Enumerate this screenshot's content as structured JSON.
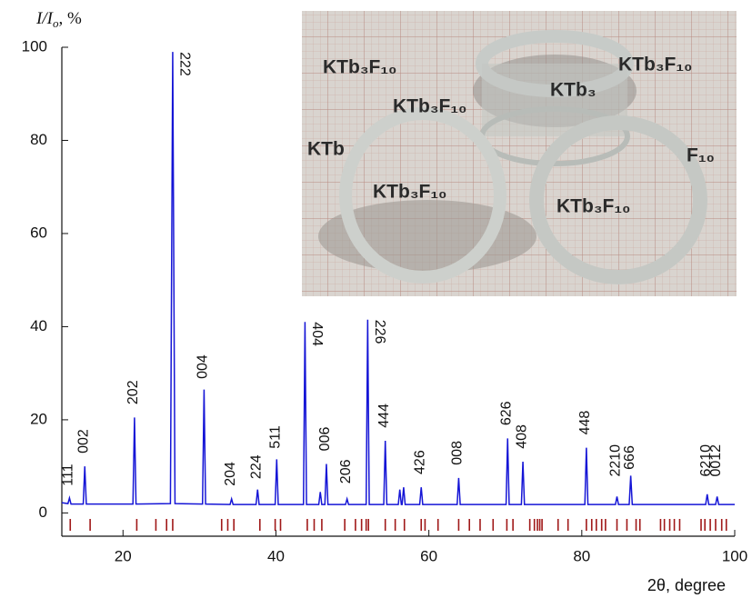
{
  "chart_data": {
    "type": "line",
    "y_label": {
      "main": "I/I",
      "sub": "o",
      "unit": ", %"
    },
    "x_label": "2θ, degree",
    "xlim": [
      12,
      100
    ],
    "xticks": [
      20,
      40,
      60,
      80,
      100
    ],
    "ylim": [
      -5,
      100
    ],
    "yticks": [
      0,
      20,
      40,
      60,
      80,
      100
    ],
    "series": [
      {
        "color": "#1515d6",
        "x": [
          12,
          12.8,
          13.0,
          13.2,
          14.8,
          15.0,
          15.2,
          21.3,
          21.5,
          21.7,
          26.2,
          26.5,
          26.8,
          30.4,
          30.6,
          30.8,
          34.0,
          34.2,
          34.4,
          37.4,
          37.6,
          37.8,
          39.9,
          40.1,
          40.3,
          43.6,
          43.8,
          44.0,
          45.6,
          45.8,
          46.0,
          46.4,
          46.6,
          46.8,
          49.1,
          49.3,
          49.5,
          51.8,
          52.0,
          52.2,
          54.1,
          54.3,
          54.5,
          56.0,
          56.2,
          56.4,
          56.5,
          56.7,
          56.9,
          58.8,
          59.0,
          59.2,
          63.7,
          63.9,
          64.1,
          70.1,
          70.3,
          70.5,
          72.1,
          72.3,
          72.5,
          80.4,
          80.6,
          80.8,
          84.4,
          84.6,
          84.8,
          86.2,
          86.4,
          86.6,
          96.2,
          96.4,
          96.6,
          97.5,
          97.7,
          97.9,
          100
        ],
        "values": [
          2.2,
          2.0,
          3.2,
          1.9,
          1.9,
          10,
          1.9,
          1.9,
          20.5,
          1.9,
          2.0,
          99,
          2.0,
          1.9,
          26.5,
          1.9,
          1.8,
          3,
          1.8,
          1.8,
          5,
          1.8,
          1.8,
          11.5,
          1.8,
          1.8,
          41,
          1.8,
          1.8,
          4.5,
          1.8,
          1.8,
          10.5,
          1.8,
          1.8,
          3,
          1.8,
          1.8,
          41.5,
          1.8,
          1.8,
          15.5,
          1.8,
          1.8,
          5,
          1.8,
          1.8,
          5.5,
          1.8,
          1.8,
          5.5,
          1.8,
          1.8,
          7.5,
          1.8,
          1.8,
          16,
          1.8,
          1.8,
          11,
          1.8,
          1.8,
          14,
          1.8,
          1.8,
          3.5,
          1.8,
          1.8,
          8,
          1.8,
          1.8,
          4,
          1.8,
          1.8,
          3.5,
          1.8,
          1.8
        ]
      }
    ],
    "annotations": [
      {
        "text": "111",
        "x": 13.0,
        "y": 5
      },
      {
        "text": "002",
        "x": 15.0,
        "y": 12
      },
      {
        "text": "202",
        "x": 21.5,
        "y": 22.5
      },
      {
        "text": "222",
        "x": 26.5,
        "y": 99
      },
      {
        "text": "004",
        "x": 30.6,
        "y": 28
      },
      {
        "text": "204",
        "x": 34.2,
        "y": 5
      },
      {
        "text": "224",
        "x": 37.6,
        "y": 6.5
      },
      {
        "text": "511",
        "x": 40.1,
        "y": 13
      },
      {
        "text": "404",
        "x": 43.8,
        "y": 41
      },
      {
        "text": "006",
        "x": 46.6,
        "y": 12.5
      },
      {
        "text": "206",
        "x": 49.3,
        "y": 5.5
      },
      {
        "text": "226",
        "x": 52.0,
        "y": 41.5
      },
      {
        "text": "444",
        "x": 54.3,
        "y": 17.5
      },
      {
        "text": "426",
        "x": 59.0,
        "y": 7.5
      },
      {
        "text": "008",
        "x": 63.9,
        "y": 9.5
      },
      {
        "text": "626",
        "x": 70.3,
        "y": 18
      },
      {
        "text": "408",
        "x": 72.3,
        "y": 13
      },
      {
        "text": "448",
        "x": 80.6,
        "y": 16
      },
      {
        "text": "2210",
        "x": 84.6,
        "y": 7
      },
      {
        "text": "666",
        "x": 86.4,
        "y": 8.5
      },
      {
        "text": "6210",
        "x": 96.4,
        "y": 7
      },
      {
        "text": "0012",
        "x": 97.7,
        "y": 7
      }
    ],
    "reference_color": "#a01818",
    "reference_positions": [
      13.1,
      15.7,
      21.8,
      24.3,
      25.7,
      26.5,
      32.9,
      33.7,
      34.5,
      37.9,
      39.9,
      40.6,
      44.1,
      45.0,
      46.0,
      49.0,
      50.4,
      51.2,
      51.8,
      52.1,
      54.3,
      55.6,
      56.8,
      59.0,
      59.5,
      61.2,
      63.9,
      65.3,
      66.7,
      68.4,
      70.2,
      71.0,
      73.2,
      73.8,
      74.2,
      74.5,
      74.8,
      76.9,
      78.2,
      80.6,
      81.3,
      81.9,
      82.6,
      83.1,
      84.6,
      85.9,
      87.1,
      87.6,
      90.3,
      90.8,
      91.5,
      92.1,
      92.8,
      95.6,
      96.1,
      96.8,
      97.5,
      98.3,
      98.9
    ]
  },
  "inset": {
    "labels": [
      "KTb₃F₁₀",
      "KTb₃F₁₀",
      "KTb₃F₁₀",
      "KTb₃F₁₀",
      "KTb₃F₁₀",
      "KTb₃",
      "KTb",
      "F₁₀"
    ]
  }
}
